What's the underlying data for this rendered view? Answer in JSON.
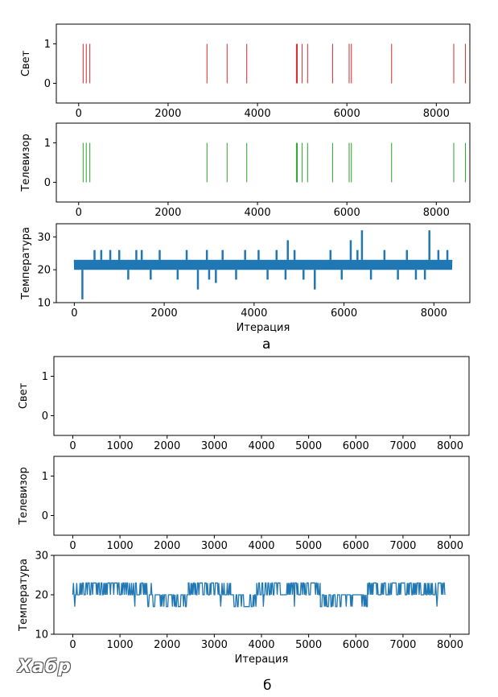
{
  "figure": {
    "caption_a": "а",
    "caption_b": "б",
    "watermark": "Хабр"
  },
  "chart_data": [
    {
      "id": "a-light",
      "type": "event",
      "ylabel": "Свет",
      "xlabel": "",
      "xlim": [
        -500,
        8750
      ],
      "ylim": [
        -0.5,
        1.5
      ],
      "xticks": [
        0,
        2000,
        4000,
        6000,
        8000
      ],
      "yticks": [
        0,
        1
      ],
      "color": "#d62728",
      "events": [
        100,
        170,
        250,
        2870,
        3320,
        3760,
        4870,
        4890,
        5000,
        5120,
        5680,
        6050,
        6100,
        7000,
        8390,
        8650
      ]
    },
    {
      "id": "a-tv",
      "type": "event",
      "ylabel": "Телевизор",
      "xlabel": "",
      "xlim": [
        -500,
        8750
      ],
      "ylim": [
        -0.5,
        1.5
      ],
      "xticks": [
        0,
        2000,
        4000,
        6000,
        8000
      ],
      "yticks": [
        0,
        1
      ],
      "color": "#2ca02c",
      "events": [
        100,
        170,
        250,
        2870,
        3320,
        3760,
        4870,
        4890,
        5000,
        5120,
        5680,
        6050,
        6100,
        7000,
        8390,
        8650
      ]
    },
    {
      "id": "a-temp",
      "type": "line",
      "ylabel": "Температура",
      "xlabel": "Итерация",
      "xlim": [
        -400,
        8800
      ],
      "ylim": [
        10,
        34
      ],
      "xticks": [
        0,
        2000,
        4000,
        6000,
        8000
      ],
      "yticks": [
        10,
        20,
        30
      ],
      "color": "#1f77b4",
      "band": {
        "x_start": 0,
        "x_end": 8400,
        "low": 20,
        "high": 23
      },
      "spikes": [
        [
          180,
          11
        ],
        [
          450,
          26
        ],
        [
          600,
          26
        ],
        [
          800,
          26
        ],
        [
          1000,
          26
        ],
        [
          1200,
          17
        ],
        [
          1380,
          26
        ],
        [
          1500,
          26
        ],
        [
          1700,
          17
        ],
        [
          1900,
          26
        ],
        [
          2300,
          17
        ],
        [
          2500,
          26
        ],
        [
          2750,
          14
        ],
        [
          2950,
          26
        ],
        [
          3000,
          17
        ],
        [
          3150,
          16
        ],
        [
          3300,
          26
        ],
        [
          3600,
          17
        ],
        [
          3800,
          26
        ],
        [
          4100,
          26
        ],
        [
          4300,
          17
        ],
        [
          4500,
          26
        ],
        [
          4700,
          17
        ],
        [
          4750,
          29
        ],
        [
          4900,
          26
        ],
        [
          5100,
          17
        ],
        [
          5350,
          14
        ],
        [
          5700,
          26
        ],
        [
          5950,
          17
        ],
        [
          6150,
          29
        ],
        [
          6300,
          26
        ],
        [
          6400,
          32
        ],
        [
          6600,
          17
        ],
        [
          6900,
          26
        ],
        [
          7200,
          17
        ],
        [
          7400,
          26
        ],
        [
          7600,
          17
        ],
        [
          7800,
          17
        ],
        [
          7900,
          32
        ],
        [
          8100,
          26
        ],
        [
          8300,
          26
        ]
      ]
    },
    {
      "id": "b-light",
      "type": "event",
      "ylabel": "Свет",
      "xlabel": "",
      "xlim": [
        -400,
        8400
      ],
      "ylim": [
        -0.5,
        1.5
      ],
      "xticks": [
        0,
        1000,
        2000,
        3000,
        4000,
        5000,
        6000,
        7000,
        8000
      ],
      "yticks": [
        0,
        1
      ],
      "color": "#d62728",
      "events": []
    },
    {
      "id": "b-tv",
      "type": "event",
      "ylabel": "Телевизор",
      "xlabel": "",
      "xlim": [
        -400,
        8400
      ],
      "ylim": [
        -0.5,
        1.5
      ],
      "xticks": [
        0,
        1000,
        2000,
        3000,
        4000,
        5000,
        6000,
        7000,
        8000
      ],
      "yticks": [
        0,
        1
      ],
      "color": "#2ca02c",
      "events": []
    },
    {
      "id": "b-temp",
      "type": "line",
      "ylabel": "Температура",
      "xlabel": "Итерация",
      "xlim": [
        -400,
        8400
      ],
      "ylim": [
        10,
        30
      ],
      "xticks": [
        0,
        1000,
        2000,
        3000,
        4000,
        5000,
        6000,
        7000,
        8000
      ],
      "yticks": [
        10,
        20,
        30
      ],
      "color": "#1f77b4",
      "segments": [
        {
          "x_start": 0,
          "x_end": 1580,
          "base": 20,
          "alt": 23,
          "alt_density": 0.55,
          "dip": 17
        },
        {
          "x_start": 1580,
          "x_end": 2450,
          "base": 20,
          "alt": 17,
          "alt_density": 0.35,
          "dip": 23
        },
        {
          "x_start": 2450,
          "x_end": 3350,
          "base": 20,
          "alt": 23,
          "alt_density": 0.55,
          "dip": 17
        },
        {
          "x_start": 3350,
          "x_end": 3900,
          "base": 20,
          "alt": 17,
          "alt_density": 0.5,
          "dip": 23
        },
        {
          "x_start": 3900,
          "x_end": 5250,
          "base": 20,
          "alt": 23,
          "alt_density": 0.55,
          "dip": 17
        },
        {
          "x_start": 5250,
          "x_end": 6250,
          "base": 20,
          "alt": 17,
          "alt_density": 0.35,
          "dip": 23
        },
        {
          "x_start": 6250,
          "x_end": 7900,
          "base": 20,
          "alt": 23,
          "alt_density": 0.5,
          "dip": 17
        }
      ]
    }
  ]
}
